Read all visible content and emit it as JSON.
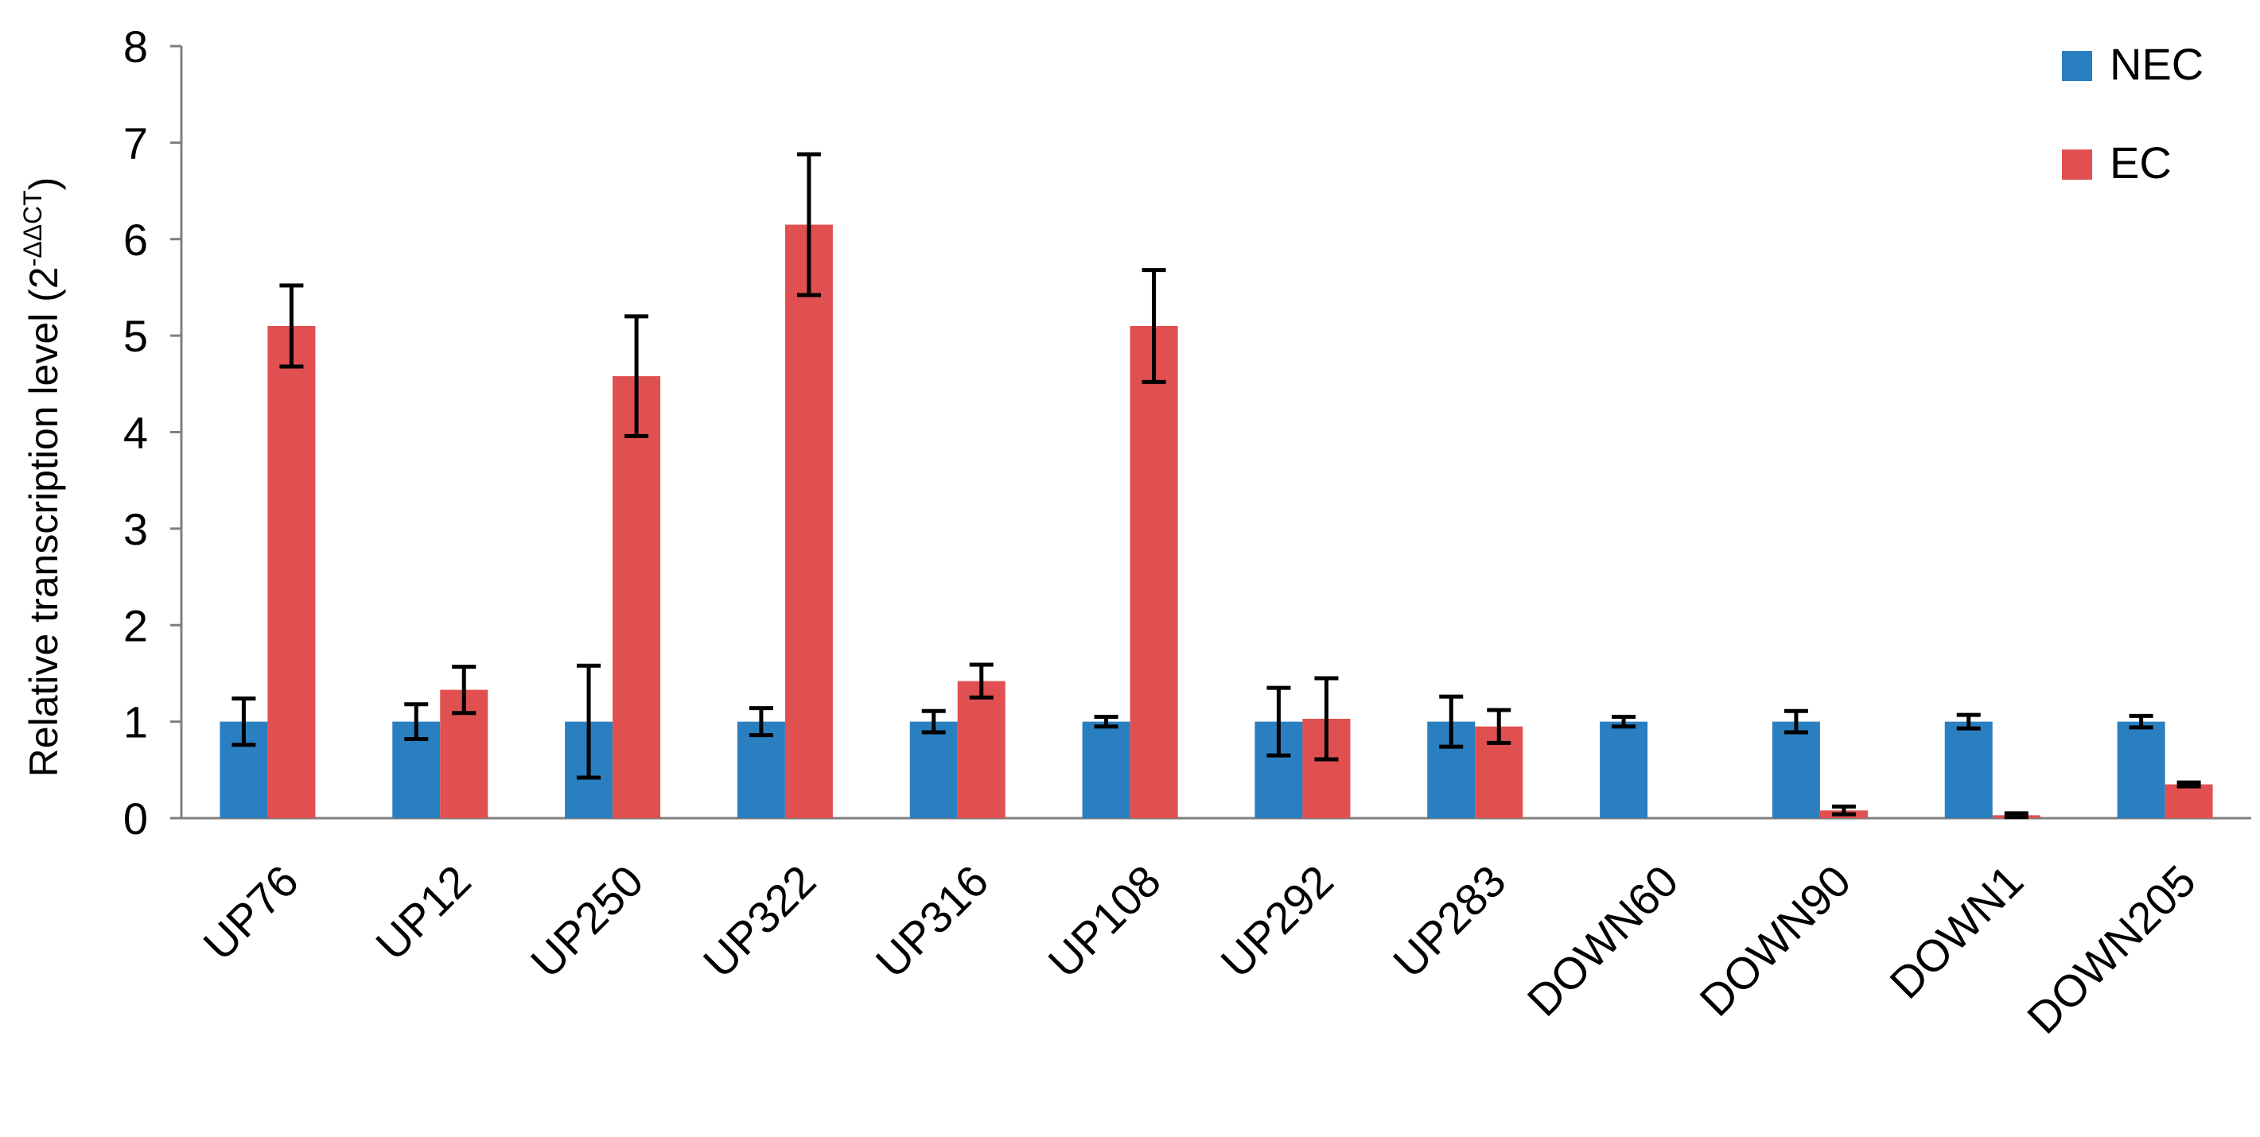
{
  "chart_data": {
    "type": "bar",
    "title": "",
    "xlabel": "",
    "ylabel": "Relative transcription level (2",
    "ylabel_superscript": "-ΔΔCT",
    "ylabel_close": ")",
    "ylim": [
      0,
      8
    ],
    "yticks": [
      "0",
      "1",
      "2",
      "3",
      "4",
      "5",
      "6",
      "7",
      "8"
    ],
    "grid": false,
    "legend_position": "top-right",
    "categories": [
      "UP76",
      "UP12",
      "UP250",
      "UP322",
      "UP316",
      "UP108",
      "UP292",
      "UP283",
      "DOWN60",
      "DOWN90",
      "DOWN1",
      "DOWN205"
    ],
    "series": [
      {
        "name": "NEC",
        "color": "#2a7fc1",
        "values": [
          1.0,
          1.0,
          1.0,
          1.0,
          1.0,
          1.0,
          1.0,
          1.0,
          1.0,
          1.0,
          1.0,
          1.0
        ],
        "errors": [
          0.24,
          0.18,
          0.58,
          0.14,
          0.11,
          0.05,
          0.35,
          0.26,
          0.05,
          0.11,
          0.07,
          0.06
        ]
      },
      {
        "name": "EC",
        "color": "#e05050",
        "values": [
          5.1,
          1.33,
          4.58,
          6.15,
          1.42,
          5.1,
          1.03,
          0.95,
          0.0,
          0.08,
          0.03,
          0.35
        ],
        "errors": [
          0.42,
          0.24,
          0.62,
          0.73,
          0.17,
          0.58,
          0.42,
          0.17,
          0.0,
          0.04,
          0.02,
          0.02
        ]
      }
    ]
  }
}
